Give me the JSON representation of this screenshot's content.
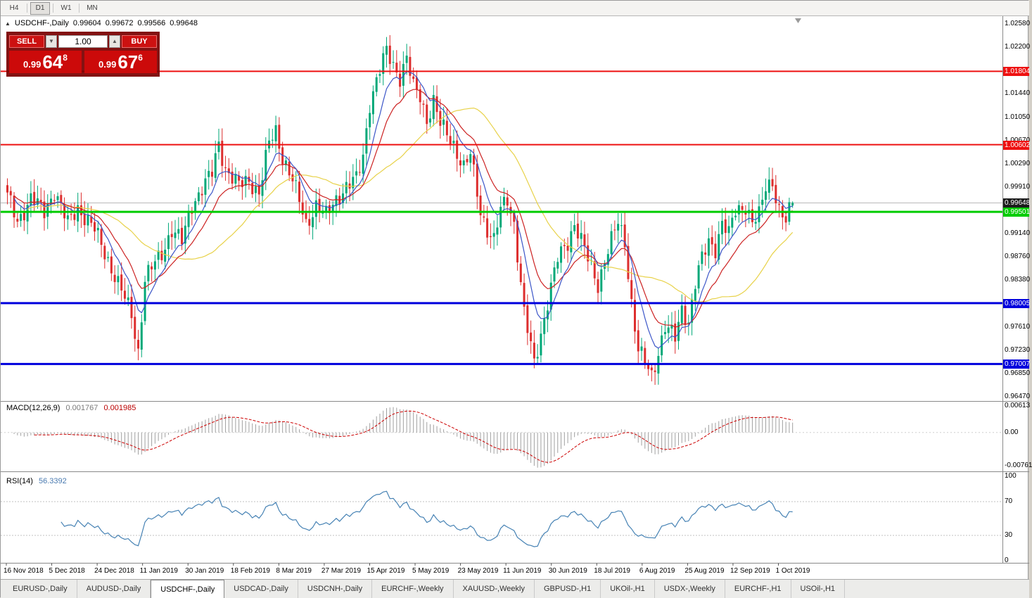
{
  "toolbar": {
    "timeframes": [
      {
        "label": "H4",
        "active": false
      },
      {
        "label": "D1",
        "active": true
      },
      {
        "label": "W1",
        "active": false
      },
      {
        "label": "MN",
        "active": false
      }
    ]
  },
  "chart": {
    "title": {
      "symbol": "USDCHF-,Daily",
      "open": "0.99604",
      "high": "0.99672",
      "low": "0.99566",
      "close": "0.99648"
    },
    "trade_panel": {
      "sell_label": "SELL",
      "buy_label": "BUY",
      "volume": "1.00",
      "spin_down": "▼",
      "spin_up": "▲",
      "sell_price": {
        "big": "0.99",
        "huge": "64",
        "sup": "8"
      },
      "buy_price": {
        "big": "0.99",
        "huge": "67",
        "sup": "6"
      }
    },
    "toggle_icon": "▲"
  },
  "chart_data": {
    "type": "candlestick",
    "symbol": "USDCHF",
    "timeframe": "Daily",
    "last_ohlc": {
      "open": 0.99604,
      "high": 0.99672,
      "low": 0.99566,
      "close": 0.99648
    },
    "bid": {
      "price": 0.99648,
      "label": "0.99648"
    },
    "levels": [
      {
        "price": 1.01804,
        "color": "#ee1111",
        "label": "1.01804",
        "width": 2
      },
      {
        "price": 1.00602,
        "color": "#ee1111",
        "label": "1.00602",
        "width": 2
      },
      {
        "price": 0.99501,
        "color": "#00cc00",
        "label": "0.99501",
        "width": 3
      },
      {
        "price": 0.98005,
        "color": "#0000dd",
        "label": "0.98005",
        "width": 3
      },
      {
        "price": 0.97007,
        "color": "#0000dd",
        "label": "0.97007",
        "width": 3
      }
    ],
    "y_axis_ticks": [
      "1.02580",
      "1.02200",
      "1.01440",
      "1.01050",
      "1.00670",
      "1.00290",
      "0.99910",
      "0.99140",
      "0.98760",
      "0.98380",
      "0.97610",
      "0.97230",
      "0.96850",
      "0.96470"
    ],
    "x_axis_labels": [
      "16 Nov 2018",
      "5 Dec 2018",
      "24 Dec 2018",
      "11 Jan 2019",
      "30 Jan 2019",
      "18 Feb 2019",
      "8 Mar 2019",
      "27 Mar 2019",
      "15 Apr 2019",
      "5 May 2019",
      "23 May 2019",
      "11 Jun 2019",
      "30 Jun 2019",
      "18 Jul 2019",
      "6 Aug 2019",
      "25 Aug 2019",
      "12 Sep 2019",
      "1 Oct 2019"
    ],
    "price_range": {
      "top": 1.02684,
      "bottom": 0.96412
    },
    "candle_count": 235,
    "anchors": [
      [
        0,
        0.9975
      ],
      [
        3,
        0.9935
      ],
      [
        7,
        0.9972
      ],
      [
        11,
        0.995
      ],
      [
        14,
        0.9985
      ],
      [
        18,
        0.993
      ],
      [
        21,
        0.9958
      ],
      [
        26,
        0.992
      ],
      [
        30,
        0.9872
      ],
      [
        33,
        0.9832
      ],
      [
        37,
        0.9782
      ],
      [
        39,
        0.9722
      ],
      [
        41,
        0.984
      ],
      [
        46,
        0.9882
      ],
      [
        49,
        0.9922
      ],
      [
        52,
        0.99
      ],
      [
        55,
        0.9962
      ],
      [
        58,
        0.999
      ],
      [
        61,
        1.0012
      ],
      [
        63,
        1.0062
      ],
      [
        65,
        1.0022
      ],
      [
        69,
        0.9992
      ],
      [
        72,
        1.0002
      ],
      [
        75,
        0.9982
      ],
      [
        78,
        1.0062
      ],
      [
        80,
        1.0082
      ],
      [
        82,
        1.0042
      ],
      [
        85,
        1.0002
      ],
      [
        89,
        0.993
      ],
      [
        92,
        0.9962
      ],
      [
        95,
        0.9942
      ],
      [
        98,
        0.9972
      ],
      [
        101,
        0.9992
      ],
      [
        104,
        1.0002
      ],
      [
        106,
        1.0042
      ],
      [
        108,
        1.013
      ],
      [
        111,
        1.0182
      ],
      [
        113,
        1.0212
      ],
      [
        115,
        1.0192
      ],
      [
        117,
        1.0172
      ],
      [
        119,
        1.0202
      ],
      [
        121,
        1.0152
      ],
      [
        123,
        1.014
      ],
      [
        125,
        1.0102
      ],
      [
        127,
        1.0132
      ],
      [
        129,
        1.0092
      ],
      [
        133,
        1.0062
      ],
      [
        136,
        1.0022
      ],
      [
        138,
        1.0042
      ],
      [
        141,
        0.9952
      ],
      [
        143,
        0.9922
      ],
      [
        145,
        0.9902
      ],
      [
        147,
        0.9952
      ],
      [
        149,
        0.9972
      ],
      [
        151,
        0.9932
      ],
      [
        154,
        0.9782
      ],
      [
        157,
        0.9702
      ],
      [
        159,
        0.9752
      ],
      [
        161,
        0.9802
      ],
      [
        164,
        0.9872
      ],
      [
        167,
        0.9902
      ],
      [
        169,
        0.9932
      ],
      [
        171,
        0.9902
      ],
      [
        173,
        0.9872
      ],
      [
        176,
        0.9832
      ],
      [
        178,
        0.9872
      ],
      [
        180,
        0.9902
      ],
      [
        182,
        0.9932
      ],
      [
        184,
        0.9902
      ],
      [
        186,
        0.9802
      ],
      [
        188,
        0.9722
      ],
      [
        190,
        0.9702
      ],
      [
        192,
        0.9682
      ],
      [
        194,
        0.9722
      ],
      [
        196,
        0.9762
      ],
      [
        199,
        0.9742
      ],
      [
        201,
        0.9792
      ],
      [
        203,
        0.9772
      ],
      [
        205,
        0.9832
      ],
      [
        207,
        0.9872
      ],
      [
        209,
        0.9902
      ],
      [
        211,
        0.9892
      ],
      [
        213,
        0.9932
      ],
      [
        215,
        0.9912
      ],
      [
        217,
        0.9952
      ],
      [
        220,
        0.9962
      ],
      [
        222,
        0.9932
      ],
      [
        224,
        0.9942
      ],
      [
        226,
        0.9992
      ],
      [
        228,
        1.0002
      ],
      [
        230,
        0.9952
      ],
      [
        232,
        0.9932
      ],
      [
        234,
        0.99648
      ]
    ],
    "colors": {
      "up": "#00a878",
      "down": "#dd2e2e",
      "ma_fast": "#3c56c8",
      "ma_mid": "#cc2222",
      "ma_slow": "#e8d24a",
      "macd_hist": "#a0a0a0",
      "macd_signal": "#cc0000",
      "rsi_line": "#4682b4",
      "bid_line": "#b4b4b4",
      "bid_box": "#1c1c1c"
    },
    "indicators": {
      "macd": {
        "label": "MACD(12,26,9)",
        "values": [
          "0.001767",
          "0.001985"
        ],
        "axis": [
          "0.00613",
          "0.00",
          "-0.00761"
        ],
        "range": {
          "max": 0.0068,
          "min": -0.0085
        }
      },
      "rsi": {
        "label": "RSI(14)",
        "value": "56.3392",
        "axis": [
          100,
          70,
          30,
          0
        ],
        "levels": [
          70,
          30
        ]
      }
    }
  },
  "tabs": [
    {
      "label": "EURUSD-,Daily",
      "active": false
    },
    {
      "label": "AUDUSD-,Daily",
      "active": false
    },
    {
      "label": "USDCHF-,Daily",
      "active": true
    },
    {
      "label": "USDCAD-,Daily",
      "active": false
    },
    {
      "label": "USDCNH-,Daily",
      "active": false
    },
    {
      "label": "EURCHF-,Weekly",
      "active": false
    },
    {
      "label": "XAUUSD-,Weekly",
      "active": false
    },
    {
      "label": "GBPUSD-,H1",
      "active": false
    },
    {
      "label": "UKOil-,H1",
      "active": false
    },
    {
      "label": "USDX-,Weekly",
      "active": false
    },
    {
      "label": "EURCHF-,H1",
      "active": false
    },
    {
      "label": "USOil-,H1",
      "active": false
    }
  ]
}
